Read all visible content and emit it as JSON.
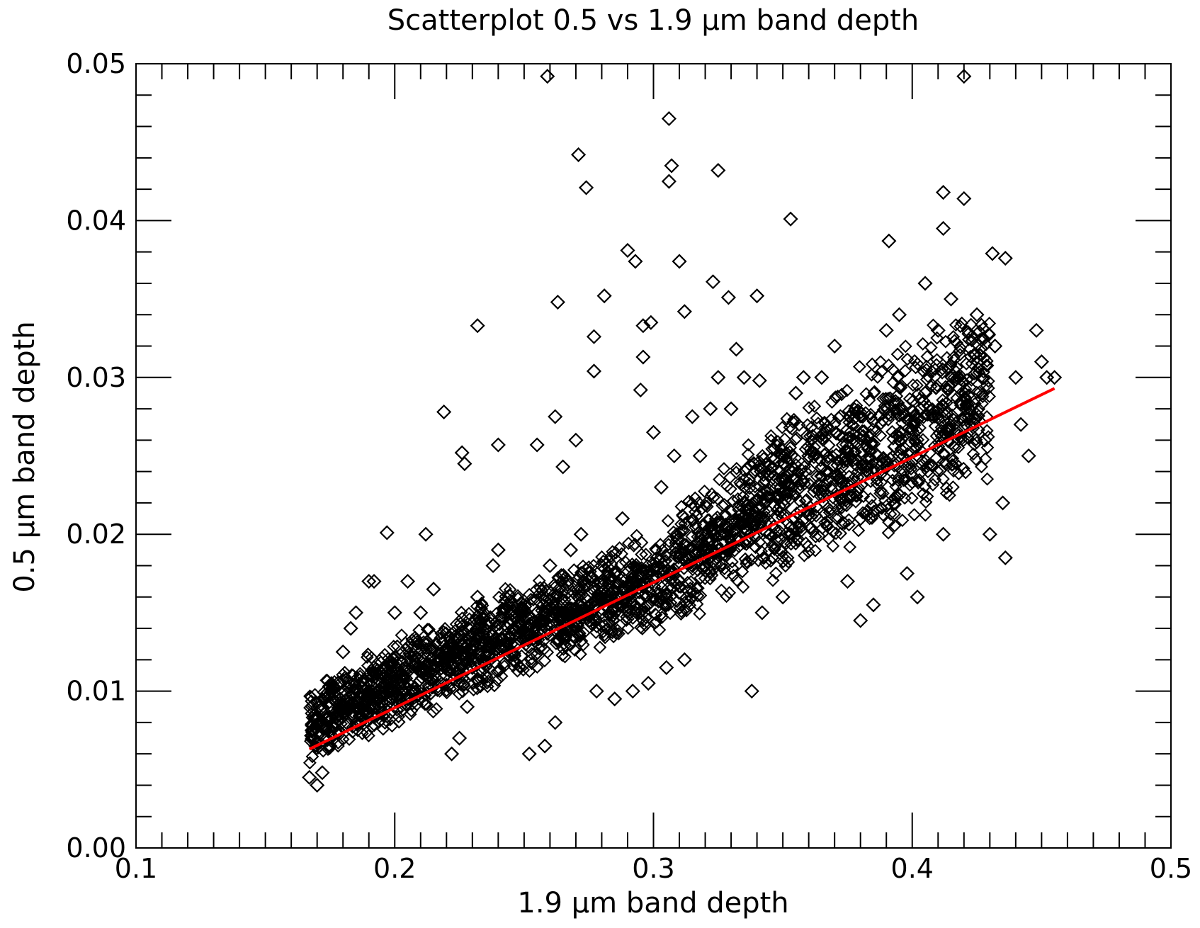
{
  "chart_data": {
    "type": "scatter",
    "title": "Scatterplot 0.5 vs 1.9 µm band depth",
    "xlabel": "1.9 µm band depth",
    "ylabel": "0.5 µm band depth",
    "xlim": [
      0.1,
      0.5
    ],
    "ylim": [
      0.0,
      0.05
    ],
    "x_ticks": [
      "0.1",
      "0.2",
      "0.3",
      "0.4",
      "0.5"
    ],
    "y_ticks": [
      "0.00",
      "0.01",
      "0.02",
      "0.03",
      "0.04",
      "0.05"
    ],
    "grid": false,
    "marker": "diamond-open",
    "point_color": "#000000",
    "fit_line_color": "#ff0000",
    "series": [
      {
        "kind": "points",
        "points": [
          [
            0.167,
            0.0045
          ],
          [
            0.17,
            0.004
          ],
          [
            0.172,
            0.0048
          ],
          [
            0.168,
            0.0075
          ],
          [
            0.175,
            0.0065
          ],
          [
            0.178,
            0.0105
          ],
          [
            0.18,
            0.0125
          ],
          [
            0.185,
            0.015
          ],
          [
            0.183,
            0.014
          ],
          [
            0.19,
            0.01
          ],
          [
            0.192,
            0.017
          ],
          [
            0.2,
            0.015
          ],
          [
            0.205,
            0.017
          ],
          [
            0.21,
            0.015
          ],
          [
            0.205,
            0.0095
          ],
          [
            0.215,
            0.0165
          ],
          [
            0.22,
            0.012
          ],
          [
            0.222,
            0.006
          ],
          [
            0.225,
            0.007
          ],
          [
            0.228,
            0.009
          ],
          [
            0.232,
            0.016
          ],
          [
            0.238,
            0.018
          ],
          [
            0.24,
            0.019
          ],
          [
            0.245,
            0.013
          ],
          [
            0.252,
            0.006
          ],
          [
            0.258,
            0.0065
          ],
          [
            0.26,
            0.018
          ],
          [
            0.262,
            0.008
          ],
          [
            0.268,
            0.019
          ],
          [
            0.272,
            0.02
          ],
          [
            0.275,
            0.017
          ],
          [
            0.278,
            0.01
          ],
          [
            0.285,
            0.0095
          ],
          [
            0.292,
            0.01
          ],
          [
            0.298,
            0.0105
          ],
          [
            0.305,
            0.0115
          ],
          [
            0.312,
            0.012
          ],
          [
            0.318,
            0.025
          ],
          [
            0.322,
            0.028
          ],
          [
            0.325,
            0.03
          ],
          [
            0.33,
            0.028
          ],
          [
            0.335,
            0.03
          ],
          [
            0.338,
            0.01
          ],
          [
            0.342,
            0.015
          ],
          [
            0.35,
            0.016
          ],
          [
            0.355,
            0.029
          ],
          [
            0.358,
            0.03
          ],
          [
            0.365,
            0.03
          ],
          [
            0.37,
            0.032
          ],
          [
            0.375,
            0.017
          ],
          [
            0.38,
            0.0145
          ],
          [
            0.385,
            0.0155
          ],
          [
            0.39,
            0.033
          ],
          [
            0.395,
            0.034
          ],
          [
            0.398,
            0.0175
          ],
          [
            0.402,
            0.016
          ],
          [
            0.405,
            0.036
          ],
          [
            0.41,
            0.033
          ],
          [
            0.412,
            0.02
          ],
          [
            0.415,
            0.035
          ],
          [
            0.418,
            0.03
          ],
          [
            0.422,
            0.028
          ],
          [
            0.425,
            0.034
          ],
          [
            0.428,
            0.026
          ],
          [
            0.43,
            0.02
          ],
          [
            0.432,
            0.032
          ],
          [
            0.435,
            0.022
          ],
          [
            0.436,
            0.0185
          ],
          [
            0.44,
            0.03
          ],
          [
            0.442,
            0.027
          ],
          [
            0.445,
            0.025
          ],
          [
            0.448,
            0.033
          ],
          [
            0.45,
            0.031
          ],
          [
            0.452,
            0.03
          ],
          [
            0.455,
            0.03
          ],
          [
            0.232,
            0.0333
          ],
          [
            0.219,
            0.0278
          ],
          [
            0.226,
            0.0252
          ],
          [
            0.227,
            0.0245
          ],
          [
            0.24,
            0.0257
          ],
          [
            0.255,
            0.0257
          ],
          [
            0.262,
            0.0275
          ],
          [
            0.263,
            0.0348
          ],
          [
            0.271,
            0.0442
          ],
          [
            0.274,
            0.0421
          ],
          [
            0.281,
            0.0352
          ],
          [
            0.277,
            0.0326
          ],
          [
            0.277,
            0.0304
          ],
          [
            0.29,
            0.0381
          ],
          [
            0.293,
            0.0374
          ],
          [
            0.296,
            0.0333
          ],
          [
            0.299,
            0.0335
          ],
          [
            0.296,
            0.0313
          ],
          [
            0.295,
            0.0292
          ],
          [
            0.306,
            0.0465
          ],
          [
            0.307,
            0.0435
          ],
          [
            0.306,
            0.0425
          ],
          [
            0.31,
            0.0374
          ],
          [
            0.312,
            0.0342
          ],
          [
            0.325,
            0.0432
          ],
          [
            0.323,
            0.0361
          ],
          [
            0.329,
            0.0351
          ],
          [
            0.34,
            0.0352
          ],
          [
            0.353,
            0.0401
          ],
          [
            0.341,
            0.0298
          ],
          [
            0.332,
            0.0318
          ],
          [
            0.27,
            0.026
          ],
          [
            0.265,
            0.0243
          ],
          [
            0.259,
            0.0492
          ],
          [
            0.42,
            0.0492
          ],
          [
            0.391,
            0.0387
          ],
          [
            0.412,
            0.0418
          ],
          [
            0.42,
            0.0414
          ],
          [
            0.412,
            0.0395
          ],
          [
            0.436,
            0.0376
          ],
          [
            0.431,
            0.0379
          ],
          [
            0.197,
            0.0201
          ],
          [
            0.212,
            0.02
          ],
          [
            0.19,
            0.017
          ],
          [
            0.3,
            0.0265
          ],
          [
            0.308,
            0.025
          ],
          [
            0.315,
            0.0275
          ],
          [
            0.303,
            0.023
          ],
          [
            0.288,
            0.021
          ],
          [
            0.28,
            0.018
          ],
          [
            0.36,
            0.025
          ],
          [
            0.372,
            0.022
          ],
          [
            0.38,
            0.021
          ],
          [
            0.395,
            0.025
          ],
          [
            0.405,
            0.029
          ],
          [
            0.345,
            0.02
          ],
          [
            0.335,
            0.022
          ],
          [
            0.325,
            0.019
          ],
          [
            0.315,
            0.018
          ],
          [
            0.3,
            0.016
          ],
          [
            0.285,
            0.015
          ],
          [
            0.27,
            0.0145
          ],
          [
            0.255,
            0.0135
          ],
          [
            0.245,
            0.0125
          ],
          [
            0.23,
            0.0115
          ],
          [
            0.215,
            0.011
          ],
          [
            0.2,
            0.01
          ],
          [
            0.188,
            0.009
          ],
          [
            0.178,
            0.0085
          ]
        ]
      },
      {
        "kind": "dense_band",
        "description_note": "",
        "centerline": [
          [
            0.167,
            0.008
          ],
          [
            0.2,
            0.0105
          ],
          [
            0.25,
            0.014
          ],
          [
            0.3,
            0.017
          ],
          [
            0.34,
            0.0215
          ],
          [
            0.38,
            0.025
          ],
          [
            0.41,
            0.0275
          ],
          [
            0.43,
            0.029
          ]
        ],
        "half_width": [
          [
            0.167,
            0.0028
          ],
          [
            0.2,
            0.003
          ],
          [
            0.25,
            0.0032
          ],
          [
            0.3,
            0.0035
          ],
          [
            0.34,
            0.005
          ],
          [
            0.38,
            0.006
          ],
          [
            0.41,
            0.0065
          ],
          [
            0.43,
            0.006
          ]
        ]
      },
      {
        "kind": "fit_line",
        "x": [
          0.167,
          0.455
        ],
        "y": [
          0.0063,
          0.0293
        ]
      }
    ]
  }
}
